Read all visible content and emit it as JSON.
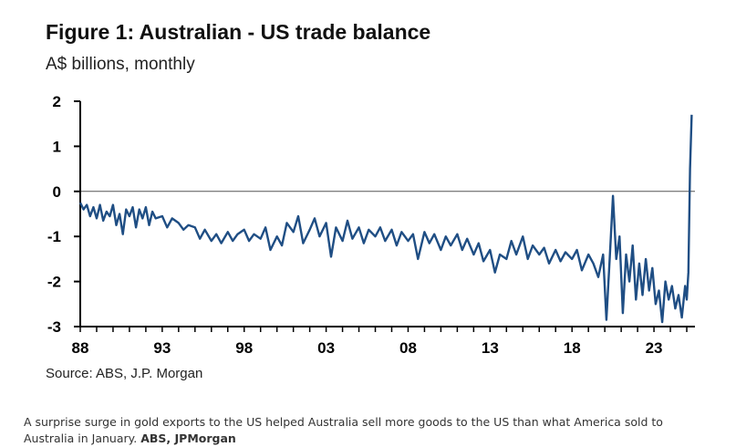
{
  "chart_data": {
    "type": "line",
    "title": "Figure 1: Australian - US trade balance",
    "subtitle": "A$ billions, monthly",
    "xlabel": "",
    "ylabel": "",
    "x_ticks": [
      "88",
      "93",
      "98",
      "03",
      "08",
      "13",
      "18",
      "23"
    ],
    "y_ticks": [
      "2",
      "1",
      "0",
      "-1",
      "-2",
      "-3"
    ],
    "xlim": [
      1988.0,
      2025.5
    ],
    "ylim": [
      -3,
      2
    ],
    "zero_line": true,
    "grid": false,
    "series": [
      {
        "color": "#1f4e84",
        "points": [
          [
            1988.0,
            -0.25
          ],
          [
            1988.2,
            -0.4
          ],
          [
            1988.4,
            -0.3
          ],
          [
            1988.6,
            -0.55
          ],
          [
            1988.8,
            -0.35
          ],
          [
            1989.0,
            -0.6
          ],
          [
            1989.2,
            -0.3
          ],
          [
            1989.4,
            -0.65
          ],
          [
            1989.6,
            -0.45
          ],
          [
            1989.8,
            -0.55
          ],
          [
            1990.0,
            -0.3
          ],
          [
            1990.2,
            -0.75
          ],
          [
            1990.4,
            -0.5
          ],
          [
            1990.6,
            -0.95
          ],
          [
            1990.8,
            -0.4
          ],
          [
            1991.0,
            -0.55
          ],
          [
            1991.2,
            -0.35
          ],
          [
            1991.4,
            -0.8
          ],
          [
            1991.6,
            -0.4
          ],
          [
            1991.8,
            -0.6
          ],
          [
            1992.0,
            -0.35
          ],
          [
            1992.2,
            -0.75
          ],
          [
            1992.4,
            -0.45
          ],
          [
            1992.6,
            -0.6
          ],
          [
            1993.0,
            -0.55
          ],
          [
            1993.3,
            -0.8
          ],
          [
            1993.6,
            -0.6
          ],
          [
            1994.0,
            -0.7
          ],
          [
            1994.3,
            -0.85
          ],
          [
            1994.6,
            -0.75
          ],
          [
            1995.0,
            -0.8
          ],
          [
            1995.3,
            -1.05
          ],
          [
            1995.6,
            -0.85
          ],
          [
            1996.0,
            -1.1
          ],
          [
            1996.3,
            -0.95
          ],
          [
            1996.6,
            -1.15
          ],
          [
            1997.0,
            -0.9
          ],
          [
            1997.3,
            -1.1
          ],
          [
            1997.6,
            -0.95
          ],
          [
            1998.0,
            -0.85
          ],
          [
            1998.3,
            -1.1
          ],
          [
            1998.6,
            -0.95
          ],
          [
            1999.0,
            -1.05
          ],
          [
            1999.3,
            -0.8
          ],
          [
            1999.6,
            -1.3
          ],
          [
            2000.0,
            -1.0
          ],
          [
            2000.3,
            -1.2
          ],
          [
            2000.6,
            -0.7
          ],
          [
            2001.0,
            -0.9
          ],
          [
            2001.3,
            -0.55
          ],
          [
            2001.6,
            -1.15
          ],
          [
            2002.0,
            -0.85
          ],
          [
            2002.3,
            -0.6
          ],
          [
            2002.6,
            -1.0
          ],
          [
            2003.0,
            -0.7
          ],
          [
            2003.3,
            -1.45
          ],
          [
            2003.6,
            -0.8
          ],
          [
            2004.0,
            -1.1
          ],
          [
            2004.3,
            -0.65
          ],
          [
            2004.6,
            -1.05
          ],
          [
            2005.0,
            -0.8
          ],
          [
            2005.3,
            -1.15
          ],
          [
            2005.6,
            -0.85
          ],
          [
            2006.0,
            -1.0
          ],
          [
            2006.3,
            -0.8
          ],
          [
            2006.6,
            -1.1
          ],
          [
            2007.0,
            -0.85
          ],
          [
            2007.3,
            -1.2
          ],
          [
            2007.6,
            -0.9
          ],
          [
            2008.0,
            -1.1
          ],
          [
            2008.3,
            -0.95
          ],
          [
            2008.6,
            -1.5
          ],
          [
            2009.0,
            -0.9
          ],
          [
            2009.3,
            -1.15
          ],
          [
            2009.6,
            -0.95
          ],
          [
            2010.0,
            -1.3
          ],
          [
            2010.3,
            -1.0
          ],
          [
            2010.6,
            -1.2
          ],
          [
            2011.0,
            -0.95
          ],
          [
            2011.3,
            -1.3
          ],
          [
            2011.6,
            -1.05
          ],
          [
            2012.0,
            -1.4
          ],
          [
            2012.3,
            -1.15
          ],
          [
            2012.6,
            -1.55
          ],
          [
            2013.0,
            -1.3
          ],
          [
            2013.3,
            -1.8
          ],
          [
            2013.6,
            -1.4
          ],
          [
            2014.0,
            -1.5
          ],
          [
            2014.3,
            -1.1
          ],
          [
            2014.6,
            -1.4
          ],
          [
            2015.0,
            -1.0
          ],
          [
            2015.3,
            -1.5
          ],
          [
            2015.6,
            -1.2
          ],
          [
            2016.0,
            -1.4
          ],
          [
            2016.3,
            -1.25
          ],
          [
            2016.6,
            -1.6
          ],
          [
            2017.0,
            -1.3
          ],
          [
            2017.3,
            -1.55
          ],
          [
            2017.6,
            -1.35
          ],
          [
            2018.0,
            -1.5
          ],
          [
            2018.3,
            -1.3
          ],
          [
            2018.6,
            -1.75
          ],
          [
            2019.0,
            -1.4
          ],
          [
            2019.3,
            -1.6
          ],
          [
            2019.6,
            -1.9
          ],
          [
            2019.9,
            -1.4
          ],
          [
            2020.1,
            -2.85
          ],
          [
            2020.3,
            -1.5
          ],
          [
            2020.5,
            -0.1
          ],
          [
            2020.7,
            -1.5
          ],
          [
            2020.9,
            -1.0
          ],
          [
            2021.1,
            -2.7
          ],
          [
            2021.3,
            -1.4
          ],
          [
            2021.5,
            -2.0
          ],
          [
            2021.7,
            -1.2
          ],
          [
            2021.9,
            -2.4
          ],
          [
            2022.1,
            -1.6
          ],
          [
            2022.3,
            -2.3
          ],
          [
            2022.5,
            -1.5
          ],
          [
            2022.7,
            -2.2
          ],
          [
            2022.9,
            -1.7
          ],
          [
            2023.1,
            -2.5
          ],
          [
            2023.3,
            -2.2
          ],
          [
            2023.5,
            -2.9
          ],
          [
            2023.7,
            -2.0
          ],
          [
            2023.9,
            -2.4
          ],
          [
            2024.1,
            -2.1
          ],
          [
            2024.3,
            -2.6
          ],
          [
            2024.5,
            -2.3
          ],
          [
            2024.7,
            -2.8
          ],
          [
            2024.9,
            -2.1
          ],
          [
            2025.0,
            -2.4
          ],
          [
            2025.1,
            -1.8
          ],
          [
            2025.2,
            0.5
          ],
          [
            2025.3,
            1.7
          ]
        ]
      }
    ]
  },
  "source": "Source: ABS,  J.P. Morgan",
  "caption": {
    "text": "A surprise surge in gold exports to the US helped Australia sell more goods to the US than what America sold to Australia in January.",
    "credit": "ABS, JPMorgan"
  }
}
